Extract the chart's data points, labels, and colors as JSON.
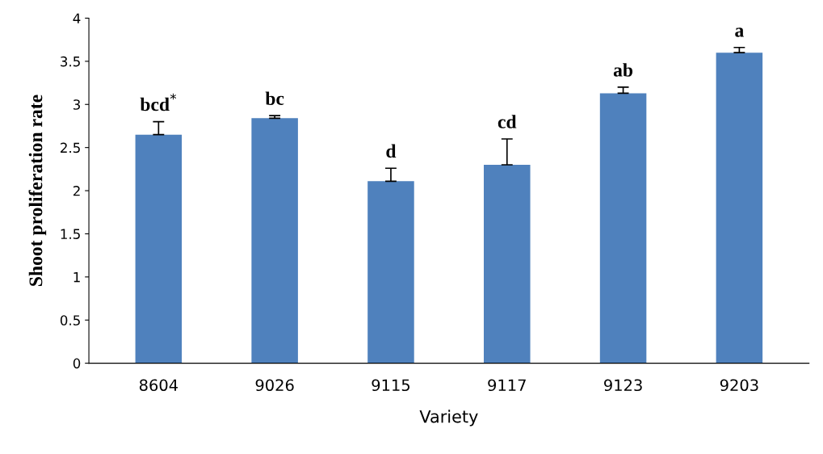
{
  "chart_data": {
    "type": "bar",
    "xlabel": "Variety",
    "ylabel": "Shoot proliferation rate",
    "categories": [
      "8604",
      "9026",
      "9115",
      "9117",
      "9123",
      "9203"
    ],
    "values": [
      2.65,
      2.84,
      2.11,
      2.3,
      3.13,
      3.6
    ],
    "errors": [
      [
        2.65,
        2.8
      ],
      [
        2.84,
        2.87
      ],
      [
        2.11,
        2.26
      ],
      [
        2.3,
        2.6
      ],
      [
        3.13,
        3.2
      ],
      [
        3.6,
        3.66
      ]
    ],
    "color": "#4f81bd",
    "ylim": [
      0,
      4
    ],
    "yticks": [
      0,
      0.5,
      1,
      1.5,
      2,
      2.5,
      3,
      3.5,
      4
    ],
    "grid": false,
    "legend": false,
    "annotations": [
      {
        "text": "bcd$^{*}$",
        "x": "8604",
        "y": 2.8
      },
      {
        "text": "bc",
        "x": "9026",
        "y": 2.87
      },
      {
        "text": "d",
        "x": "9115",
        "y": 2.26
      },
      {
        "text": "cd",
        "x": "9117",
        "y": 2.6
      },
      {
        "text": "ab",
        "x": "9123",
        "y": 3.2
      },
      {
        "text": "a",
        "x": "9203",
        "y": 3.66
      }
    ]
  }
}
